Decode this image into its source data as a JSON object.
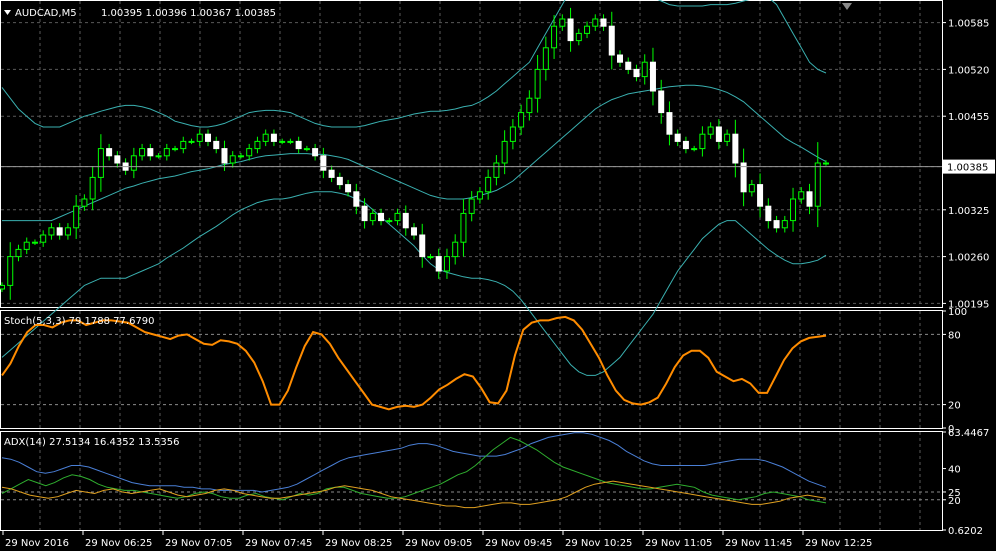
{
  "chart_data": [
    {
      "type": "candlestick",
      "panel": "main",
      "symbol": "AUDCAD,M5",
      "ohlc_header": "1.00395 1.00396 1.00367 1.00385",
      "y_ticks": [
        "1.00585",
        "1.00520",
        "1.00455",
        "1.00385",
        "1.00325",
        "1.00260",
        "1.00195"
      ],
      "y_tick_values": [
        1.00585,
        1.0052,
        1.00455,
        1.00385,
        1.00325,
        1.0026,
        1.00195
      ],
      "ylim": [
        1.0019,
        1.00615
      ],
      "current_price": 1.00385,
      "current_price_label": "1.00385",
      "closes": [
        1.0022,
        1.0026,
        1.0027,
        1.0028,
        1.0028,
        1.0029,
        1.003,
        1.0029,
        1.003,
        1.0033,
        1.0034,
        1.0037,
        1.0041,
        1.004,
        1.0039,
        1.0038,
        1.004,
        1.0041,
        1.004,
        1.004,
        1.0041,
        1.0041,
        1.0042,
        1.0042,
        1.0043,
        1.0042,
        1.0041,
        1.0039,
        1.004,
        1.004,
        1.0041,
        1.0042,
        1.0043,
        1.0042,
        1.0042,
        1.0042,
        1.0041,
        1.0041,
        1.004,
        1.0038,
        1.0037,
        1.0036,
        1.0035,
        1.0033,
        1.0031,
        1.0032,
        1.0031,
        1.0031,
        1.0032,
        1.003,
        1.0029,
        1.0026,
        1.0026,
        1.0024,
        1.0026,
        1.0028,
        1.0032,
        1.0034,
        1.0035,
        1.0037,
        1.0039,
        1.0042,
        1.0044,
        1.0046,
        1.0048,
        1.0052,
        1.0055,
        1.0058,
        1.0059,
        1.0056,
        1.0057,
        1.0058,
        1.0059,
        1.0058,
        1.0054,
        1.0053,
        1.0052,
        1.0051,
        1.0053,
        1.0049,
        1.0046,
        1.0043,
        1.0042,
        1.0041,
        1.0041,
        1.0043,
        1.0044,
        1.0042,
        1.0043,
        1.0039,
        1.0035,
        1.0036,
        1.0033,
        1.0031,
        1.003,
        1.0031,
        1.0034,
        1.0035,
        1.0033,
        1.0039,
        1.0039
      ],
      "bollinger": {
        "upper": [
          1.00495,
          1.0048,
          1.00465,
          1.00455,
          1.00445,
          1.0044,
          1.0044,
          1.0044,
          1.00445,
          1.0045,
          1.00455,
          1.00458,
          1.00462,
          1.00465,
          1.00468,
          1.0047,
          1.0047,
          1.00468,
          1.00465,
          1.0046,
          1.00455,
          1.00448,
          1.00445,
          1.00442,
          1.0044,
          1.0044,
          1.00442,
          1.00445,
          1.0045,
          1.00455,
          1.0046,
          1.00462,
          1.00463,
          1.00463,
          1.00462,
          1.0046,
          1.00455,
          1.0045,
          1.00445,
          1.00442,
          1.0044,
          1.0044,
          1.0044,
          1.0044,
          1.00442,
          1.00445,
          1.00448,
          1.0045,
          1.00452,
          1.00455,
          1.00458,
          1.0046,
          1.00462,
          1.00462,
          1.00463,
          1.00465,
          1.00468,
          1.0047,
          1.00475,
          1.00482,
          1.0049,
          1.005,
          1.0051,
          1.0052,
          1.0053,
          1.0055,
          1.0057,
          1.0059,
          1.0061,
          1.0063,
          1.0064,
          1.00645,
          1.0065,
          1.00648,
          1.00645,
          1.0064,
          1.00635,
          1.0063,
          1.00625,
          1.0062,
          1.00615,
          1.0061,
          1.00608,
          1.00608,
          1.00608,
          1.00608,
          1.0061,
          1.0061,
          1.0061,
          1.00612,
          1.00615,
          1.00618,
          1.0062,
          1.0062,
          1.0061,
          1.0059,
          1.0057,
          1.0055,
          1.0053,
          1.0052,
          1.00515
        ],
        "middle": [
          1.0031,
          1.0031,
          1.0031,
          1.0031,
          1.0031,
          1.0031,
          1.0031,
          1.00315,
          1.0032,
          1.00325,
          1.0033,
          1.00335,
          1.0034,
          1.00345,
          1.0035,
          1.00355,
          1.00358,
          1.00362,
          1.00365,
          1.00368,
          1.0037,
          1.00372,
          1.00375,
          1.00378,
          1.0038,
          1.00382,
          1.00385,
          1.00388,
          1.0039,
          1.00392,
          1.00395,
          1.00398,
          1.004,
          1.00401,
          1.00402,
          1.00403,
          1.00403,
          1.00403,
          1.00402,
          1.00402,
          1.004,
          1.00398,
          1.00395,
          1.0039,
          1.00385,
          1.0038,
          1.00375,
          1.0037,
          1.00365,
          1.0036,
          1.00355,
          1.0035,
          1.00345,
          1.00342,
          1.0034,
          1.0034,
          1.0034,
          1.00342,
          1.00345,
          1.00348,
          1.00352,
          1.00358,
          1.00365,
          1.00375,
          1.00385,
          1.00395,
          1.00405,
          1.00415,
          1.00425,
          1.00435,
          1.00445,
          1.00455,
          1.00465,
          1.00472,
          1.00478,
          1.00482,
          1.00486,
          1.00488,
          1.0049,
          1.00492,
          1.00494,
          1.00496,
          1.00497,
          1.00498,
          1.00498,
          1.00497,
          1.00495,
          1.00492,
          1.00488,
          1.00482,
          1.00475,
          1.00465,
          1.00455,
          1.00445,
          1.00435,
          1.00425,
          1.00418,
          1.00412,
          1.00405,
          1.00398,
          1.00392
        ],
        "lower": [
          1.0012,
          1.0013,
          1.0014,
          1.0015,
          1.0016,
          1.0017,
          1.0018,
          1.0019,
          1.002,
          1.0021,
          1.0022,
          1.00225,
          1.0023,
          1.0023,
          1.0023,
          1.0023,
          1.00235,
          1.0024,
          1.00245,
          1.0025,
          1.00258,
          1.00265,
          1.00272,
          1.0028,
          1.00288,
          1.00295,
          1.00302,
          1.0031,
          1.00318,
          1.00325,
          1.0033,
          1.00335,
          1.00338,
          1.0034,
          1.0034,
          1.00342,
          1.00345,
          1.00348,
          1.0035,
          1.0035,
          1.0035,
          1.00348,
          1.00345,
          1.0034,
          1.00335,
          1.00325,
          1.00315,
          1.00305,
          1.00295,
          1.00285,
          1.00275,
          1.00262,
          1.0025,
          1.00242,
          1.00238,
          1.00235,
          1.00232,
          1.0023,
          1.0023,
          1.00228,
          1.00225,
          1.0022,
          1.00212,
          1.002,
          1.00185,
          1.0017,
          1.00155,
          1.0014,
          1.00125,
          1.0011,
          1.001,
          1.00095,
          1.00095,
          1.001,
          1.0011,
          1.0012,
          1.00135,
          1.0015,
          1.00165,
          1.0018,
          1.002,
          1.0022,
          1.0024,
          1.00255,
          1.0027,
          1.00285,
          1.00295,
          1.00305,
          1.0031,
          1.0031,
          1.003,
          1.0029,
          1.0028,
          1.0027,
          1.00262,
          1.00255,
          1.0025,
          1.0025,
          1.00252,
          1.00255,
          1.00262
        ]
      },
      "x_tick_labels": [
        "29 Nov 2016",
        "29 Nov 06:25",
        "29 Nov 07:05",
        "29 Nov 07:45",
        "29 Nov 08:25",
        "29 Nov 09:05",
        "29 Nov 09:45",
        "29 Nov 10:25",
        "29 Nov 11:05",
        "29 Nov 11:45",
        "29 Nov 12:25"
      ]
    },
    {
      "type": "line",
      "panel": "stochastic",
      "header": "Stoch(5,3,3) 79.1788 77.6790",
      "ylim": [
        0,
        100
      ],
      "y_ticks": [
        "100",
        "80",
        "20",
        "0"
      ],
      "y_tick_values": [
        100,
        80,
        20,
        0
      ],
      "levels": [
        80,
        20
      ],
      "series": [
        {
          "color": "#ff8c00",
          "values": [
            45,
            55,
            70,
            82,
            88,
            88,
            86,
            90,
            92,
            92,
            88,
            90,
            92,
            92,
            91,
            90,
            86,
            82,
            80,
            78,
            76,
            79,
            80,
            76,
            72,
            71,
            75,
            74,
            72,
            66,
            56,
            40,
            20,
            20,
            32,
            52,
            70,
            82,
            80,
            72,
            60,
            50,
            40,
            30,
            20,
            18,
            16,
            18,
            19,
            18,
            20,
            26,
            33,
            37,
            42,
            46,
            44,
            34,
            22,
            21,
            32,
            62,
            84,
            90,
            92,
            92,
            94,
            95,
            92,
            84,
            72,
            60,
            45,
            32,
            24,
            21,
            20,
            22,
            26,
            38,
            52,
            62,
            66,
            66,
            60,
            48,
            44,
            40,
            42,
            38,
            30,
            30,
            44,
            58,
            68,
            74,
            77,
            78,
            79
          ]
        }
      ]
    },
    {
      "type": "line",
      "panel": "adx",
      "header": "ADX(14) 27.5134 16.4352 13.5356",
      "ylim": [
        0.6202,
        63.4467
      ],
      "y_ticks": [
        "63.4467",
        "40",
        "25",
        "20",
        "0.6202"
      ],
      "y_tick_values": [
        63.4467,
        40,
        25,
        20,
        0.6202
      ],
      "levels": [
        25,
        20
      ],
      "series": [
        {
          "color": "#4a7fd6",
          "values": [
            47,
            46,
            44,
            41,
            38,
            37,
            38,
            40,
            42,
            42,
            41,
            39,
            37,
            35,
            33,
            31,
            30,
            29,
            29,
            29,
            29,
            28,
            28,
            27,
            27,
            26,
            26,
            26,
            26,
            26,
            25,
            26,
            27,
            28,
            30,
            33,
            36,
            39,
            42,
            45,
            47,
            48,
            49,
            50,
            51,
            52,
            53,
            55,
            56,
            56,
            55,
            53,
            51,
            50,
            49,
            48,
            48,
            48,
            49,
            51,
            53,
            56,
            58,
            60,
            61,
            62,
            63,
            63,
            62,
            60,
            58,
            55,
            51,
            48,
            45,
            43,
            42,
            42,
            42,
            42,
            42,
            42,
            43,
            44,
            45,
            46,
            46,
            46,
            45,
            43,
            41,
            38,
            35,
            32,
            30,
            28
          ]
        },
        {
          "color": "#2fae2f",
          "values": [
            24,
            27,
            30,
            33,
            31,
            29,
            31,
            34,
            36,
            35,
            33,
            30,
            28,
            27,
            26,
            26,
            25,
            24,
            23,
            22,
            21,
            22,
            24,
            25,
            24,
            22,
            21,
            21,
            23,
            24,
            22,
            21,
            20,
            22,
            24,
            23,
            24,
            27,
            28,
            28,
            26,
            24,
            23,
            22,
            21,
            21,
            22,
            24,
            26,
            28,
            30,
            33,
            36,
            38,
            42,
            47,
            52,
            56,
            60,
            58,
            55,
            52,
            48,
            44,
            41,
            39,
            37,
            35,
            33,
            31,
            30,
            29,
            28,
            27,
            27,
            28,
            29,
            30,
            29,
            28,
            25,
            23,
            22,
            21,
            20,
            21,
            22,
            24,
            25,
            24,
            23,
            22,
            20,
            19,
            18
          ]
        },
        {
          "color": "#e0a020",
          "values": [
            28,
            27,
            25,
            23,
            22,
            21,
            22,
            24,
            26,
            25,
            24,
            26,
            27,
            25,
            24,
            25,
            26,
            27,
            25,
            23,
            22,
            23,
            24,
            26,
            27,
            26,
            24,
            23,
            22,
            21,
            21,
            22,
            23,
            24,
            25,
            26,
            28,
            29,
            28,
            27,
            26,
            24,
            22,
            21,
            20,
            19,
            18,
            17,
            16,
            16,
            15,
            15,
            16,
            17,
            18,
            18,
            17,
            17,
            18,
            19,
            20,
            22,
            25,
            28,
            30,
            31,
            32,
            31,
            30,
            29,
            28,
            27,
            26,
            25,
            24,
            23,
            22,
            21,
            20,
            19,
            18,
            17,
            17,
            18,
            19,
            21,
            22,
            23,
            22,
            21
          ]
        }
      ]
    }
  ]
}
